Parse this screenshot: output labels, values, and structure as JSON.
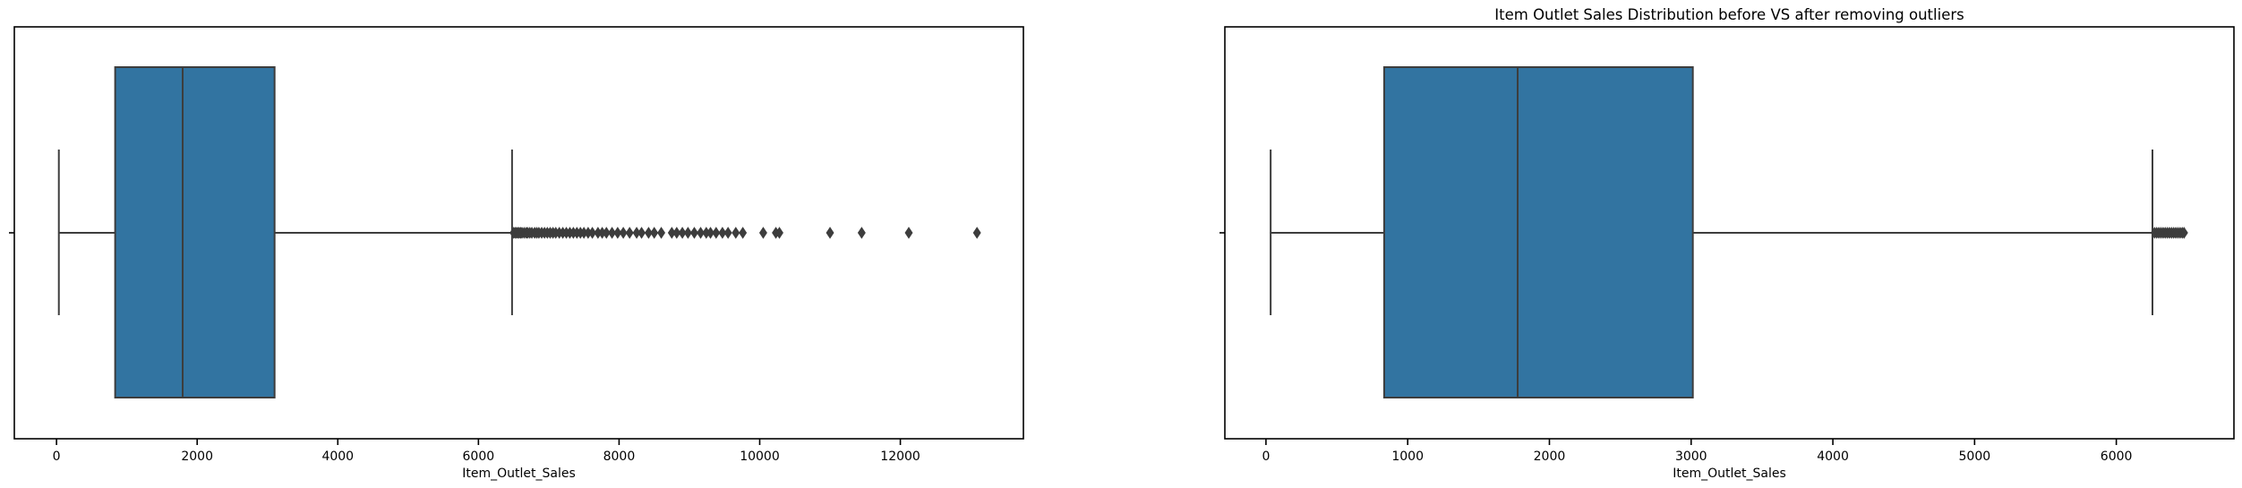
{
  "chart_data": [
    {
      "type": "box",
      "title": "",
      "xlabel": "Item_Outlet_Sales",
      "ylabel": "",
      "xlim": [
        -600,
        13750
      ],
      "xticks": [
        0,
        2000,
        4000,
        6000,
        8000,
        10000,
        12000
      ],
      "xtick_labels": [
        "0",
        "2000",
        "4000",
        "6000",
        "8000",
        "10000",
        "12000"
      ],
      "grid": false,
      "color": "#3274a1",
      "box": {
        "whisker_low": 33,
        "q1": 834,
        "median": 1794,
        "q3": 3101,
        "whisker_high": 6478
      },
      "outliers": [
        6500,
        6520,
        6540,
        6560,
        6580,
        6600,
        6620,
        6650,
        6680,
        6700,
        6730,
        6760,
        6800,
        6830,
        6860,
        6900,
        6940,
        6980,
        7020,
        7060,
        7100,
        7150,
        7200,
        7250,
        7300,
        7350,
        7400,
        7450,
        7500,
        7560,
        7620,
        7700,
        7760,
        7820,
        7900,
        7980,
        8060,
        8150,
        8250,
        8320,
        8420,
        8500,
        8600,
        8750,
        8820,
        8900,
        8980,
        9070,
        9160,
        9240,
        9300,
        9380,
        9470,
        9550,
        9660,
        9760,
        10050,
        10230,
        10280,
        11000,
        11450,
        12120,
        13090
      ]
    },
    {
      "type": "box",
      "title": "Item Outlet Sales Distribution before VS after removing outliers",
      "xlabel": "Item_Outlet_Sales",
      "ylabel": "",
      "xlim": [
        -290,
        6830
      ],
      "xticks": [
        0,
        1000,
        2000,
        3000,
        4000,
        5000,
        6000
      ],
      "xtick_labels": [
        "0",
        "1000",
        "2000",
        "3000",
        "4000",
        "5000",
        "6000"
      ],
      "grid": false,
      "color": "#3274a1",
      "box": {
        "whisker_low": 33,
        "q1": 834,
        "median": 1776,
        "q3": 3012,
        "whisker_high": 6255
      },
      "outliers": [
        6270,
        6285,
        6300,
        6315,
        6330,
        6345,
        6360,
        6375,
        6390,
        6405,
        6420,
        6435,
        6450,
        6465,
        6478
      ]
    }
  ]
}
